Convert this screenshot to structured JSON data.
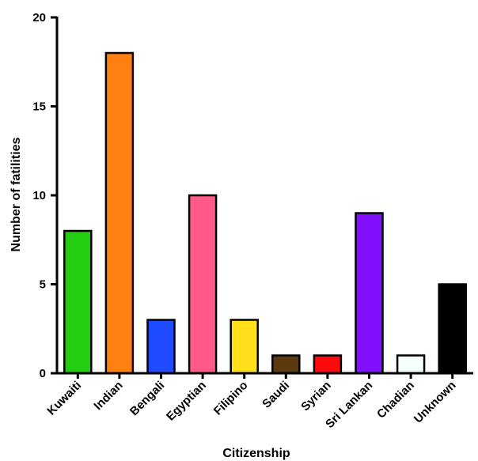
{
  "chart_data": {
    "type": "bar",
    "title": "",
    "xlabel": "Citizenship",
    "ylabel": "Number of fatilities",
    "ylim": [
      0,
      20
    ],
    "yticks": [
      0,
      5,
      10,
      15,
      20
    ],
    "grid": false,
    "legend": "none",
    "categories": [
      "Kuwaiti",
      "Indian",
      "Bengali",
      "Egyptian",
      "Filipino",
      "Saudi",
      "Syrian",
      "Sri Lankan",
      "Chadian",
      "Unknown"
    ],
    "values": [
      8,
      18,
      3,
      10,
      3,
      1,
      1,
      9,
      1,
      5
    ],
    "colors": [
      "#22cc11",
      "#ff8011",
      "#1f4bff",
      "#ff5a87",
      "#ffe01a",
      "#5c3a10",
      "#ff0a0a",
      "#8210ff",
      "#f5fffc",
      "#000000"
    ]
  }
}
